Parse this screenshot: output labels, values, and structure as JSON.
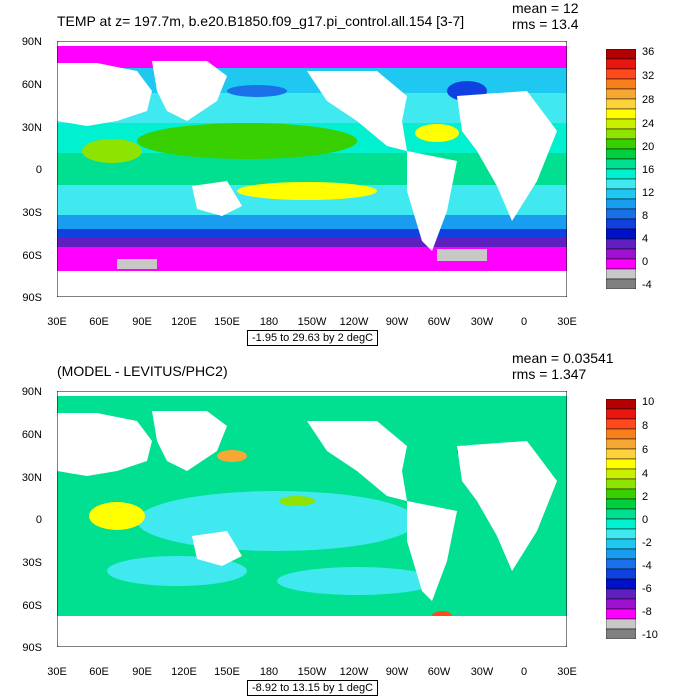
{
  "panels": [
    {
      "title": "TEMP at z= 197.7m, b.e20.B1850.f09_g17.pi_control.all.154 [3-7]",
      "mean": "mean = 12",
      "rms": "rms = 13.4",
      "range": "-1.95 to 29.63 by 2 degC",
      "lat_labels": [
        "90N",
        "60N",
        "30N",
        "0",
        "30S",
        "60S",
        "90S"
      ],
      "lon_labels": [
        "30E",
        "60E",
        "90E",
        "120E",
        "150E",
        "180",
        "150W",
        "120W",
        "90W",
        "60W",
        "30W",
        "0",
        "30E"
      ],
      "colorbar_labels": [
        "36",
        "32",
        "28",
        "24",
        "20",
        "16",
        "12",
        "8",
        "4",
        "0",
        "-4"
      ],
      "colorbar_colors": [
        "#b40000",
        "#e8160f",
        "#ff4a1e",
        "#f7801d",
        "#f7a834",
        "#fdd23a",
        "#ffff00",
        "#c8f000",
        "#8ee400",
        "#38d000",
        "#00d040",
        "#00e090",
        "#00f0d0",
        "#40e8f0",
        "#1ec8f0",
        "#1a9cf0",
        "#1a70e8",
        "#1040e0",
        "#0010c8",
        "#6020c0",
        "#a010d0",
        "#ff00ff",
        "#c8c8c8",
        "#808080"
      ]
    },
    {
      "title": "(MODEL - LEVITUS/PHC2)",
      "mean": "mean = 0.03541",
      "rms": "rms = 1.347",
      "range": "-8.92 to 13.15 by 1 degC",
      "lat_labels": [
        "90N",
        "60N",
        "30N",
        "0",
        "30S",
        "60S",
        "90S"
      ],
      "lon_labels": [
        "30E",
        "60E",
        "90E",
        "120E",
        "150E",
        "180",
        "150W",
        "120W",
        "90W",
        "60W",
        "30W",
        "0",
        "30E"
      ],
      "colorbar_labels": [
        "10",
        "8",
        "6",
        "4",
        "2",
        "0",
        "-2",
        "-4",
        "-6",
        "-8",
        "-10"
      ],
      "colorbar_colors": [
        "#b40000",
        "#e8160f",
        "#ff4a1e",
        "#f7801d",
        "#f7a834",
        "#fdd23a",
        "#ffff00",
        "#c8f000",
        "#8ee400",
        "#38d000",
        "#00d040",
        "#00e090",
        "#00f0d0",
        "#40e8f0",
        "#1ec8f0",
        "#1a9cf0",
        "#1a70e8",
        "#1040e0",
        "#0010c8",
        "#6020c0",
        "#a010d0",
        "#ff00ff",
        "#c8c8c8",
        "#808080"
      ]
    }
  ]
}
